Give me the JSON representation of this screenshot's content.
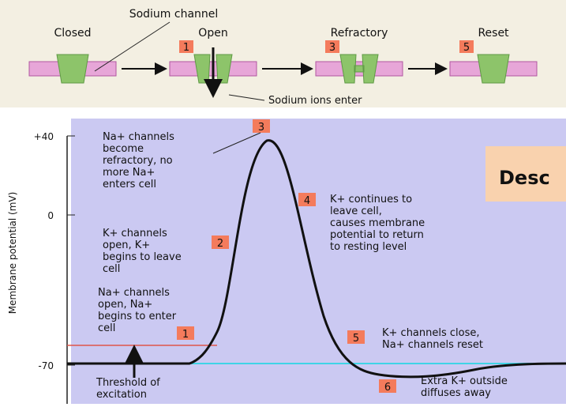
{
  "header": {
    "channel_label": "Sodium channel",
    "ions_label": "Sodium ions enter",
    "states": [
      {
        "name": "Closed"
      },
      {
        "name": "Open",
        "step": "1"
      },
      {
        "name": "Refractory",
        "step": "3"
      },
      {
        "name": "Reset",
        "step": "5"
      }
    ]
  },
  "graph": {
    "y_axis_label": "Membrane potential (mV)",
    "y_ticks": [
      "+40",
      "0",
      "-70"
    ],
    "annotations": [
      {
        "step": "3",
        "lines": [
          "Na+ channels",
          "become",
          "refractory, no",
          "more Na+",
          "enters cell"
        ]
      },
      {
        "step": "4",
        "lines": [
          "K+ continues to",
          "leave cell,",
          "causes membrane",
          "potential to return",
          "to resting level"
        ]
      },
      {
        "step": "2",
        "lines": [
          "K+ channels",
          "open, K+",
          "begins to leave",
          "cell"
        ]
      },
      {
        "step": "1",
        "lines": [
          "Na+ channels",
          "open, Na+",
          "begins to enter",
          "cell"
        ]
      },
      {
        "step": "5",
        "lines": [
          "K+ channels close,",
          "Na+ channels reset"
        ]
      },
      {
        "step": "6",
        "lines": [
          "Extra K+ outside",
          "diffuses away"
        ]
      }
    ],
    "threshold_label": [
      "Threshold of",
      "excitation"
    ]
  },
  "overlay": {
    "text": "Desc"
  }
}
